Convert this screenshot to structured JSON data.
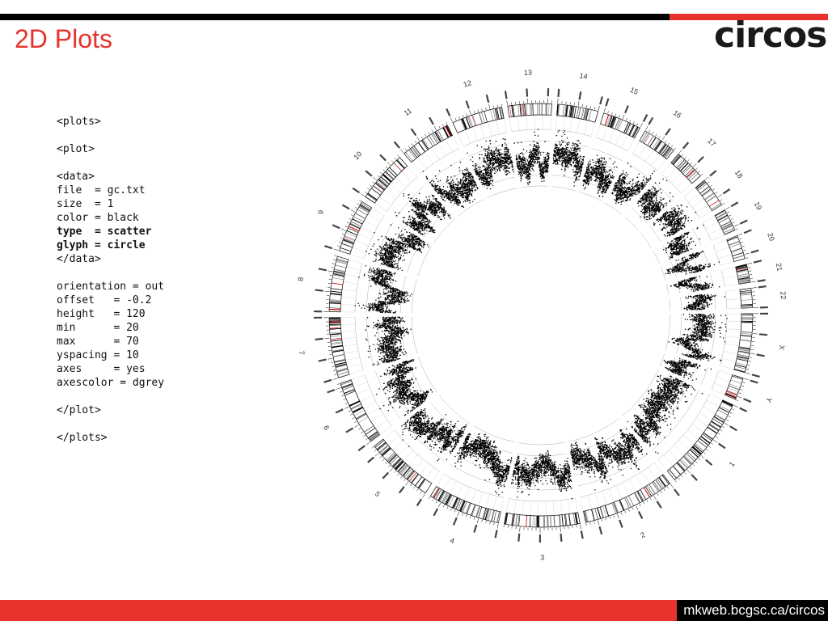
{
  "slide": {
    "title": "2D Plots",
    "logo": "circos",
    "url": "mkweb.bcgsc.ca/circos"
  },
  "config_lines": [
    {
      "text": "<plots>",
      "bold": false
    },
    {
      "text": "",
      "bold": false
    },
    {
      "text": "<plot>",
      "bold": false
    },
    {
      "text": "",
      "bold": false
    },
    {
      "text": "<data>",
      "bold": false
    },
    {
      "text": "file  = gc.txt",
      "bold": false
    },
    {
      "text": "size  = 1",
      "bold": false
    },
    {
      "text": "color = black",
      "bold": false
    },
    {
      "text": "type  = scatter",
      "bold": true
    },
    {
      "text": "glyph = circle",
      "bold": true
    },
    {
      "text": "</data>",
      "bold": false
    },
    {
      "text": "",
      "bold": false
    },
    {
      "text": "orientation = out",
      "bold": false
    },
    {
      "text": "offset   = -0.2",
      "bold": false
    },
    {
      "text": "height   = 120",
      "bold": false
    },
    {
      "text": "min      = 20",
      "bold": false
    },
    {
      "text": "max      = 70",
      "bold": false
    },
    {
      "text": "yspacing = 10",
      "bold": false
    },
    {
      "text": "axes     = yes",
      "bold": false
    },
    {
      "text": "axescolor = dgrey",
      "bold": false
    },
    {
      "text": "",
      "bold": false
    },
    {
      "text": "</plot>",
      "bold": false
    },
    {
      "text": "",
      "bold": false
    },
    {
      "text": "</plots>",
      "bold": false
    }
  ],
  "circos_plot": {
    "chromosomes": [
      "1",
      "2",
      "3",
      "4",
      "5",
      "6",
      "7",
      "8",
      "9",
      "10",
      "11",
      "12",
      "13",
      "14",
      "15",
      "16",
      "17",
      "18",
      "19",
      "20",
      "21",
      "22",
      "X",
      "Y"
    ],
    "colors": {
      "accent": "#e8322e",
      "points": "#000000",
      "axes": "#999999",
      "band_red": "#cc0000"
    },
    "plot_type": "scatter",
    "glyph": "circle"
  }
}
